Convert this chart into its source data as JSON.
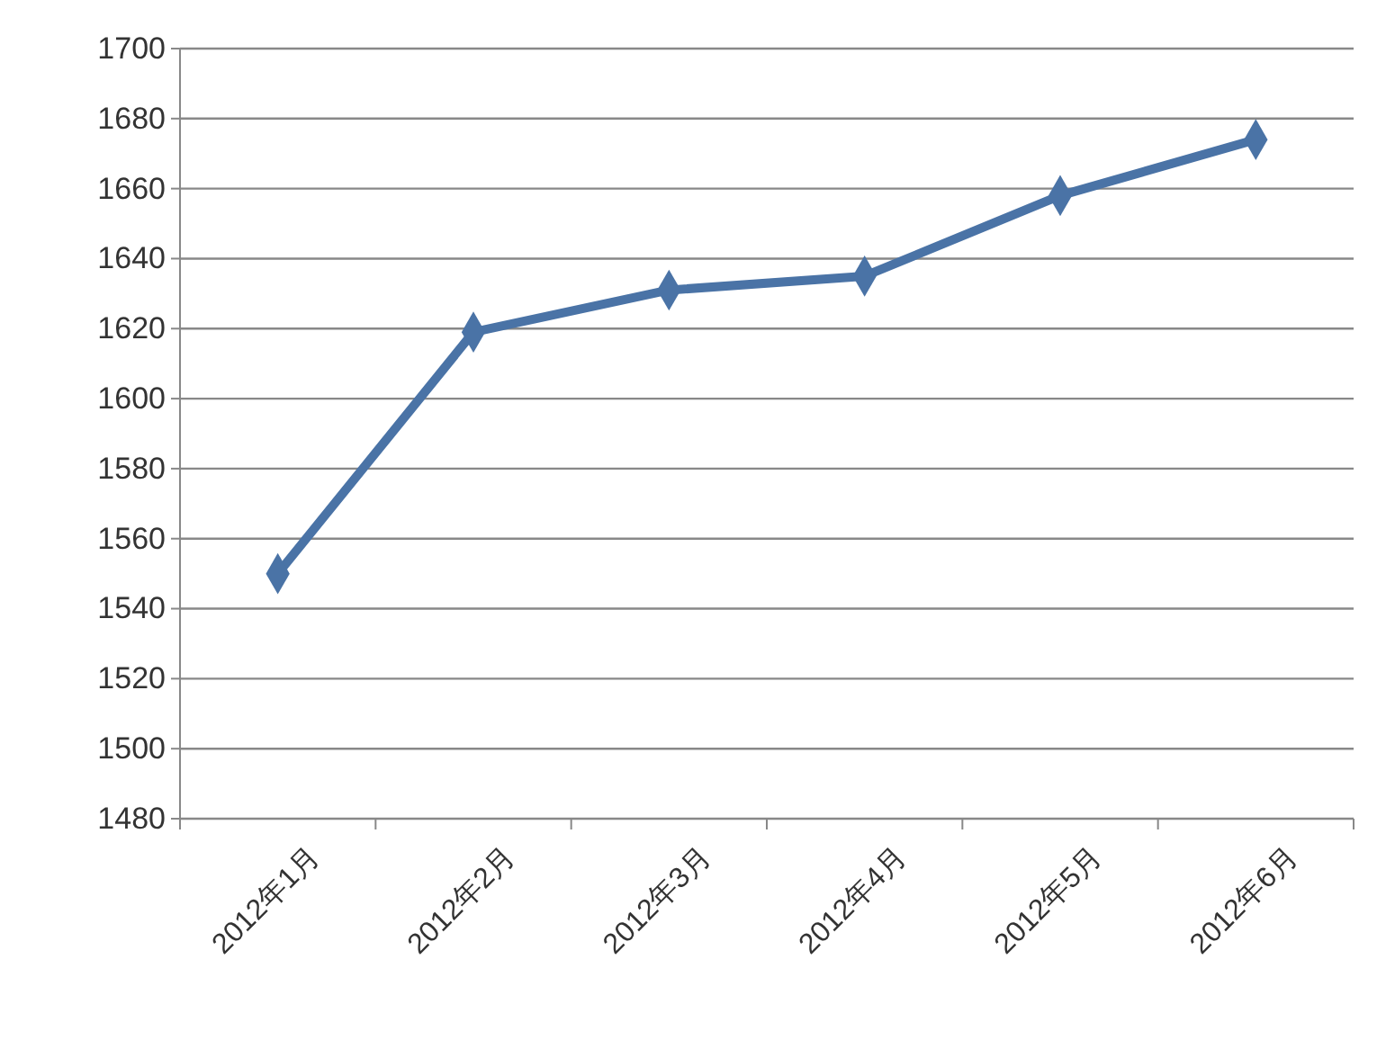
{
  "chart_data": {
    "type": "line",
    "categories": [
      "2012年1月",
      "2012年2月",
      "2012年3月",
      "2012年4月",
      "2012年5月",
      "2012年6月"
    ],
    "series": [
      {
        "color": "#4a73a6",
        "values": [
          1550,
          1619,
          1631,
          1635,
          1658,
          1674
        ]
      }
    ],
    "ylim": [
      1480,
      1700
    ],
    "yticks": [
      1480,
      1500,
      1520,
      1540,
      1560,
      1580,
      1600,
      1620,
      1640,
      1660,
      1680,
      1700
    ],
    "grid": "y",
    "marker": "diamond",
    "line_style": "solid"
  }
}
